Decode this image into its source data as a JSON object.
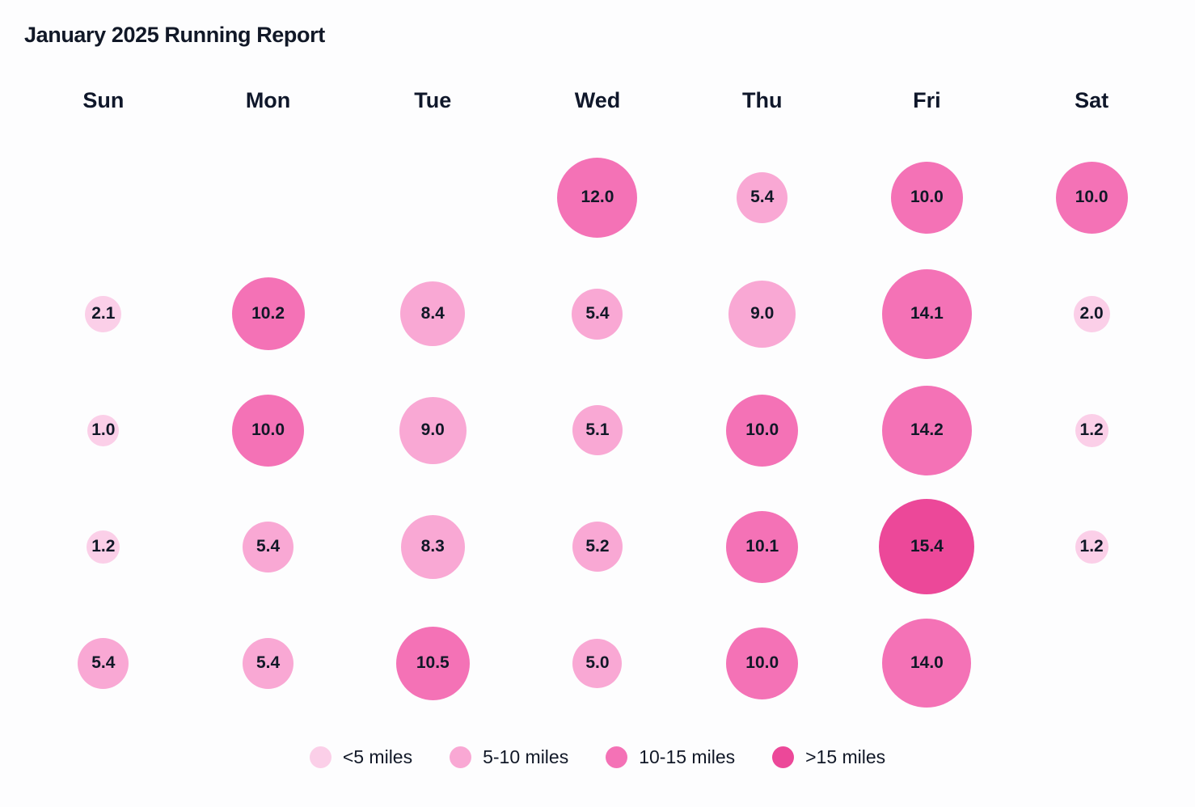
{
  "chart_data": {
    "type": "scatter",
    "subtype": "calendar-bubble",
    "title": "January 2025 Running Report",
    "value_unit": "miles",
    "value_format_decimals": 1,
    "columns": [
      "Sun",
      "Mon",
      "Tue",
      "Wed",
      "Thu",
      "Fri",
      "Sat"
    ],
    "weeks": [
      [
        null,
        null,
        null,
        12.0,
        5.4,
        10.0,
        10.0
      ],
      [
        2.1,
        10.2,
        8.4,
        5.4,
        9.0,
        14.1,
        2.0
      ],
      [
        1.0,
        10.0,
        9.0,
        5.1,
        10.0,
        14.2,
        1.2
      ],
      [
        1.2,
        5.4,
        8.3,
        5.2,
        10.1,
        15.4,
        1.2
      ],
      [
        5.4,
        5.4,
        10.5,
        5.0,
        10.0,
        14.0,
        null
      ]
    ],
    "legend_position": "bottom",
    "legend": [
      {
        "label": "<5 miles",
        "color": "#fbcfe8",
        "min": 0,
        "max": 5
      },
      {
        "label": "5-10 miles",
        "color": "#f9a8d4",
        "min": 5,
        "max": 10
      },
      {
        "label": "10-15 miles",
        "color": "#f472b6",
        "min": 10,
        "max": 15
      },
      {
        "label": ">15 miles",
        "color": "#ec4899",
        "min": 15,
        "max": null
      }
    ]
  }
}
